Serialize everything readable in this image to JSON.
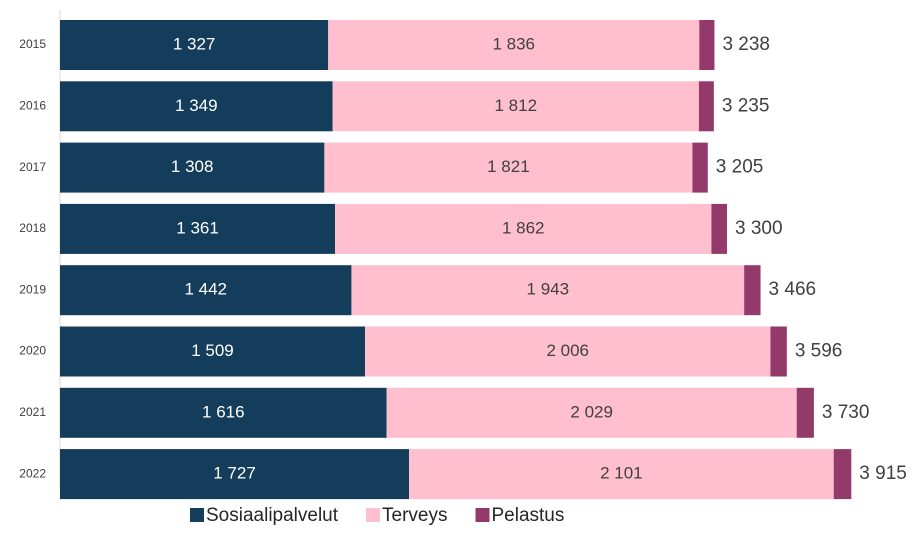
{
  "chart_data": {
    "type": "stacked-bar-horizontal",
    "categories": [
      "2015",
      "2016",
      "2017",
      "2018",
      "2019",
      "2020",
      "2021",
      "2022"
    ],
    "series": [
      {
        "name": "Sosiaalipalvelut",
        "color": "#143d5c",
        "values": [
          1327,
          1349,
          1308,
          1361,
          1442,
          1509,
          1616,
          1727
        ],
        "value_labels": [
          "1 327",
          "1 349",
          "1 308",
          "1 361",
          "1 442",
          "1 509",
          "1 616",
          "1 727"
        ]
      },
      {
        "name": "Terveys",
        "color": "#ffbfcf",
        "values": [
          1836,
          1812,
          1821,
          1862,
          1943,
          2006,
          2029,
          2101
        ],
        "value_labels": [
          "1 836",
          "1 812",
          "1 821",
          "1 862",
          "1 943",
          "2 006",
          "2 029",
          "2 101"
        ]
      },
      {
        "name": "Pelastus",
        "color": "#933a6b",
        "values": [
          75,
          74,
          76,
          77,
          81,
          81,
          85,
          87
        ]
      }
    ],
    "totals": [
      3238,
      3235,
      3205,
      3300,
      3466,
      3596,
      3730,
      3915
    ],
    "total_labels": [
      "3 238",
      "3 235",
      "3 205",
      "3 300",
      "3 466",
      "3 596",
      "3 730",
      "3 915"
    ],
    "xlim": [
      0,
      4250
    ]
  }
}
